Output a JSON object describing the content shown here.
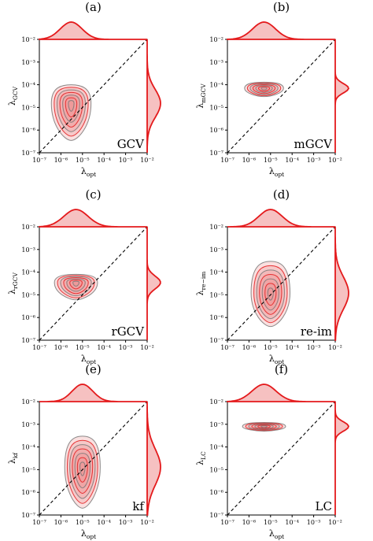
{
  "chart_data": [
    {
      "type": "contour",
      "panel": "(a)",
      "method_label": "GCV",
      "xlabel": "λ",
      "xlabel_sub": "opt",
      "ylabel": "λ",
      "ylabel_sub": "GCV",
      "xscale": "log",
      "yscale": "log",
      "xlim": [
        1e-07,
        0.01
      ],
      "ylim": [
        1e-07,
        0.01
      ],
      "xticks": [
        "10⁻⁷",
        "10⁻⁶",
        "10⁻⁵",
        "10⁻⁴",
        "10⁻³",
        "10⁻²"
      ],
      "yticks": [
        "10⁻⁷",
        "10⁻⁶",
        "10⁻⁵",
        "10⁻⁴",
        "10⁻³",
        "10⁻²"
      ],
      "reference_line": "y = x",
      "density_peak": {
        "x": 3e-06,
        "y": 1.5e-05
      },
      "density_extent_x": [
        6e-07,
        2.5e-05
      ],
      "density_extent_y": [
        3.5e-07,
        0.0001
      ],
      "x_marginal_peak": 3e-06,
      "y_marginal_peak": 1.5e-05
    },
    {
      "type": "contour",
      "panel": "(b)",
      "method_label": "mGCV",
      "xlabel": "λ",
      "xlabel_sub": "opt",
      "ylabel": "λ",
      "ylabel_sub": "mGCV",
      "xscale": "log",
      "yscale": "log",
      "xlim": [
        1e-07,
        0.01
      ],
      "ylim": [
        1e-07,
        0.01
      ],
      "xticks": [
        "10⁻⁷",
        "10⁻⁶",
        "10⁻⁵",
        "10⁻⁴",
        "10⁻³",
        "10⁻²"
      ],
      "yticks": [
        "10⁻⁷",
        "10⁻⁶",
        "10⁻⁵",
        "10⁻⁴",
        "10⁻³",
        "10⁻²"
      ],
      "reference_line": "y = x",
      "density_peak": {
        "x": 5e-06,
        "y": 7e-05
      },
      "density_extent_x": [
        8e-07,
        4e-05
      ],
      "density_extent_y": [
        3e-05,
        0.00013
      ],
      "x_marginal_peak": 5e-06,
      "y_marginal_peak": 7e-05
    },
    {
      "type": "contour",
      "panel": "(c)",
      "method_label": "rGCV",
      "xlabel": "λ",
      "xlabel_sub": "opt",
      "ylabel": "λ",
      "ylabel_sub": "rGCV",
      "xscale": "log",
      "yscale": "log",
      "xlim": [
        1e-07,
        0.01
      ],
      "ylim": [
        1e-07,
        0.01
      ],
      "xticks": [
        "10⁻⁷",
        "10⁻⁶",
        "10⁻⁵",
        "10⁻⁴",
        "10⁻³",
        "10⁻²"
      ],
      "yticks": [
        "10⁻⁷",
        "10⁻⁶",
        "10⁻⁵",
        "10⁻⁴",
        "10⁻³",
        "10⁻²"
      ],
      "reference_line": "y = x",
      "density_peak": {
        "x": 5e-06,
        "y": 3.5e-05
      },
      "density_extent_x": [
        8e-07,
        5e-05
      ],
      "density_extent_y": [
        6e-06,
        8e-05
      ],
      "x_marginal_peak": 5e-06,
      "y_marginal_peak": 3.5e-05
    },
    {
      "type": "contour",
      "panel": "(d)",
      "method_label": "re-im",
      "xlabel": "λ",
      "xlabel_sub": "opt",
      "ylabel": "λ",
      "ylabel_sub": "re−im",
      "xscale": "log",
      "yscale": "log",
      "xlim": [
        1e-07,
        0.01
      ],
      "ylim": [
        1e-07,
        0.01
      ],
      "xticks": [
        "10⁻⁷",
        "10⁻⁶",
        "10⁻⁵",
        "10⁻⁴",
        "10⁻³",
        "10⁻²"
      ],
      "yticks": [
        "10⁻⁷",
        "10⁻⁶",
        "10⁻⁵",
        "10⁻⁴",
        "10⁻³",
        "10⁻²"
      ],
      "reference_line": "y = x",
      "density_peak": {
        "x": 1e-05,
        "y": 1.2e-05
      },
      "density_extent_x": [
        1.5e-06,
        8e-05
      ],
      "density_extent_y": [
        4e-07,
        0.0003
      ],
      "x_marginal_peak": 1e-05,
      "y_marginal_peak": 1.2e-05
    },
    {
      "type": "contour",
      "panel": "(e)",
      "method_label": "kf",
      "xlabel": "λ",
      "xlabel_sub": "opt",
      "ylabel": "λ",
      "ylabel_sub": "kf",
      "xscale": "log",
      "yscale": "log",
      "xlim": [
        1e-07,
        0.01
      ],
      "ylim": [
        1e-07,
        0.01
      ],
      "xticks": [
        "10⁻⁷",
        "10⁻⁶",
        "10⁻⁵",
        "10⁻⁴",
        "10⁻³",
        "10⁻²"
      ],
      "yticks": [
        "10⁻⁷",
        "10⁻⁶",
        "10⁻⁵",
        "10⁻⁴",
        "10⁻³",
        "10⁻²"
      ],
      "reference_line": "y = x",
      "density_peak": {
        "x": 1e-05,
        "y": 1.3e-05
      },
      "density_extent_x": [
        1.5e-06,
        5e-05
      ],
      "density_extent_y": [
        2e-07,
        0.0003
      ],
      "x_marginal_peak": 1e-05,
      "y_marginal_peak": 1.3e-05
    },
    {
      "type": "contour",
      "panel": "(f)",
      "method_label": "LC",
      "xlabel": "λ",
      "xlabel_sub": "opt",
      "ylabel": "λ",
      "ylabel_sub": "LC",
      "xscale": "log",
      "yscale": "log",
      "xlim": [
        1e-07,
        0.01
      ],
      "ylim": [
        1e-07,
        0.01
      ],
      "xticks": [
        "10⁻⁷",
        "10⁻⁶",
        "10⁻⁵",
        "10⁻⁴",
        "10⁻³",
        "10⁻²"
      ],
      "yticks": [
        "10⁻⁷",
        "10⁻⁶",
        "10⁻⁵",
        "10⁻⁴",
        "10⁻³",
        "10⁻²"
      ],
      "reference_line": "y = x",
      "density_peak": {
        "x": 5e-06,
        "y": 0.0008
      },
      "density_extent_x": [
        8e-07,
        5e-05
      ],
      "density_extent_y": [
        0.0005,
        0.0012
      ],
      "x_marginal_peak": 5e-06,
      "y_marginal_peak": 0.0008
    }
  ],
  "colors": {
    "density_fill": "#ee8e8e",
    "density_line": "#e41a1c",
    "contour_stroke": "#777777",
    "reference_line": "#000000"
  }
}
